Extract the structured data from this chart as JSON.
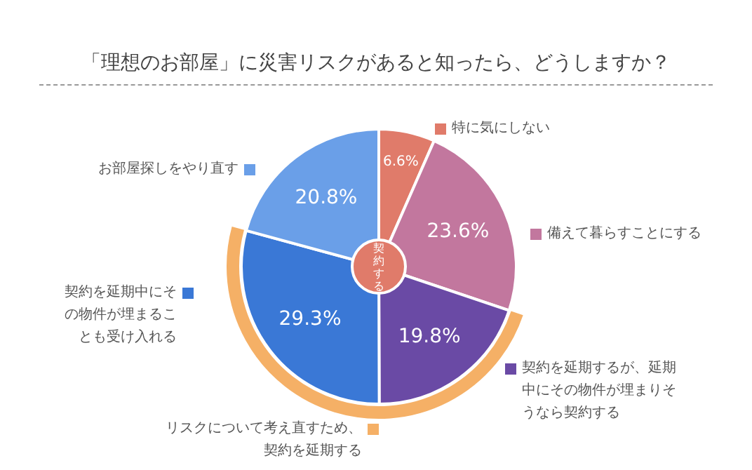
{
  "chart_data": {
    "type": "pie",
    "title": "「理想のお部屋」に災害リスクがあると知ったら、どうしますか？",
    "categories": [
      "特に気にしない",
      "備えて暮らすことにする",
      "契約を延期するが、延期中にその物件が埋まりそうなら契約する",
      "契約を延期中にその物件が埋まることも受け入れる",
      "お部屋探しをやり直す"
    ],
    "legend": "right",
    "values": [
      6.6,
      23.6,
      19.8,
      29.3,
      20.8
    ],
    "value_labels": [
      "6.6%",
      "23.6%",
      "19.8%",
      "29.3%",
      "20.8%"
    ],
    "colors": [
      "#e07b6a",
      "#c2779e",
      "#6a4aa5",
      "#3a78d6",
      "#6a9fe8"
    ],
    "annotations": [
      "契約する",
      "リスクについて考え直すため、契約を延期する"
    ]
  }
}
